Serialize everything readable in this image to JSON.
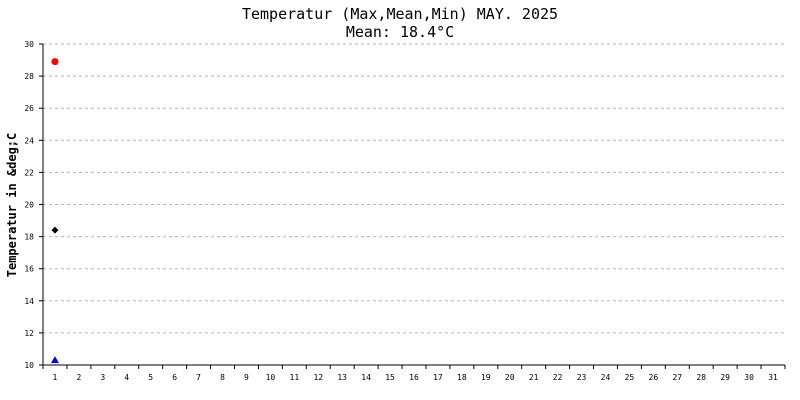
{
  "chart": {
    "title": "Temperatur (Max,Mean,Min) MAY. 2025",
    "subtitle": "Mean: 18.4°C",
    "ylabel": "Temperatur in &deg;C"
  },
  "chart_data": {
    "type": "scatter",
    "title": "Temperatur (Max,Mean,Min) MAY. 2025",
    "subtitle": "Mean: 18.4°C",
    "ylabel": "Temperatur in &deg;C",
    "xlabel": "",
    "x": [
      1
    ],
    "xticks": [
      1,
      2,
      3,
      4,
      5,
      6,
      7,
      8,
      9,
      10,
      11,
      12,
      13,
      14,
      15,
      16,
      17,
      18,
      19,
      20,
      21,
      22,
      23,
      24,
      25,
      26,
      27,
      28,
      29,
      30,
      31
    ],
    "xlim": [
      0.5,
      31.5
    ],
    "ylim": [
      10,
      30
    ],
    "yticks": [
      10,
      12,
      14,
      16,
      18,
      20,
      22,
      24,
      26,
      28,
      30
    ],
    "grid": true,
    "series": [
      {
        "values": [
          28.9
        ],
        "color": "#ff0000",
        "marker": "circle"
      },
      {
        "values": [
          18.4
        ],
        "color": "#000000",
        "marker": "diamond"
      },
      {
        "values": [
          10.3
        ],
        "color": "#0000ff",
        "marker": "triangle"
      }
    ]
  }
}
